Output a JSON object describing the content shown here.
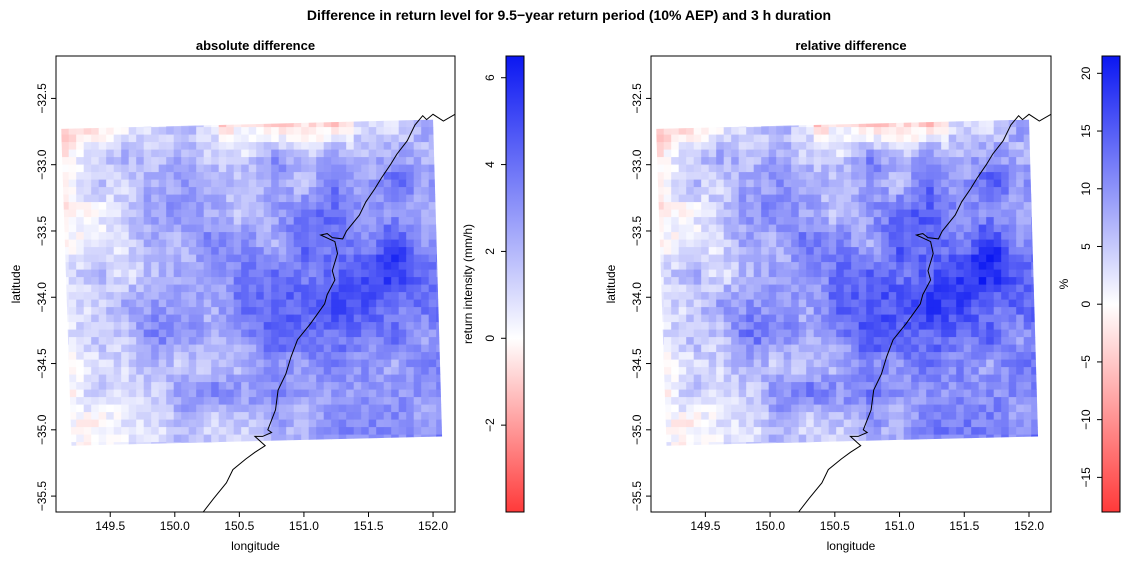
{
  "figure_title": "Difference in return level for 9.5−year return period (10% AEP) and 3 h duration",
  "colors": {
    "low": "#ff3a3a",
    "mid": "#ffffff",
    "high": "#0b17f2",
    "frame": "#000000"
  },
  "chart_data": [
    {
      "type": "heatmap",
      "title": "absolute difference",
      "xlabel": "longitude",
      "ylabel": "latitude",
      "xlim": [
        149.08,
        152.17
      ],
      "ylim": [
        -35.62,
        -32.18
      ],
      "xticks": [
        149.5,
        150.0,
        150.5,
        151.0,
        151.5,
        152.0
      ],
      "xtick_labels": [
        "149.5",
        "150.0",
        "150.5",
        "151.0",
        "151.5",
        "152.0"
      ],
      "yticks": [
        -32.5,
        -33.0,
        -33.5,
        -34.0,
        -34.5,
        -35.0,
        -35.5
      ],
      "ytick_labels": [
        "−32.5",
        "−33.0",
        "−33.5",
        "−34.0",
        "−34.5",
        "−35.0",
        "−35.5"
      ],
      "colorbar": {
        "label": "return intensity (mm/h)",
        "range": [
          -4.0,
          6.5
        ],
        "ticks": [
          -2,
          0,
          2,
          4,
          6
        ],
        "tick_labels": [
          "−2",
          "0",
          "2",
          "4",
          "6"
        ]
      },
      "domain_corners_lonlat": [
        [
          149.12,
          -32.73
        ],
        [
          152.0,
          -32.66
        ],
        [
          152.07,
          -35.05
        ],
        [
          149.2,
          -35.12
        ]
      ],
      "notes_visible": "negative (red) values in north strip and west/south-west; strongest positive (blue) values along coast east and south of 150.8"
    },
    {
      "type": "heatmap",
      "title": "relative difference",
      "xlabel": "longitude",
      "ylabel": "latitude",
      "xlim": [
        149.08,
        152.17
      ],
      "ylim": [
        -35.62,
        -32.18
      ],
      "xticks": [
        149.5,
        150.0,
        150.5,
        151.0,
        151.5,
        152.0
      ],
      "xtick_labels": [
        "149.5",
        "150.0",
        "150.5",
        "151.0",
        "151.5",
        "152.0"
      ],
      "yticks": [
        -32.5,
        -33.0,
        -33.5,
        -34.0,
        -34.5,
        -35.0,
        -35.5
      ],
      "ytick_labels": [
        "−32.5",
        "−33.0",
        "−33.5",
        "−34.0",
        "−34.5",
        "−35.0",
        "−35.5"
      ],
      "colorbar": {
        "label": "%",
        "range": [
          -18.0,
          21.5
        ],
        "ticks": [
          -15,
          -10,
          -5,
          0,
          5,
          10,
          15,
          20
        ],
        "tick_labels": [
          "−15",
          "−10",
          "−5",
          "0",
          "5",
          "10",
          "15",
          "20"
        ]
      },
      "domain_corners_lonlat": [
        [
          149.12,
          -32.73
        ],
        [
          152.0,
          -32.66
        ],
        [
          152.07,
          -35.05
        ],
        [
          149.2,
          -35.12
        ]
      ],
      "notes_visible": "similar pattern to absolute difference, with stronger red at north strip and west edge"
    }
  ]
}
